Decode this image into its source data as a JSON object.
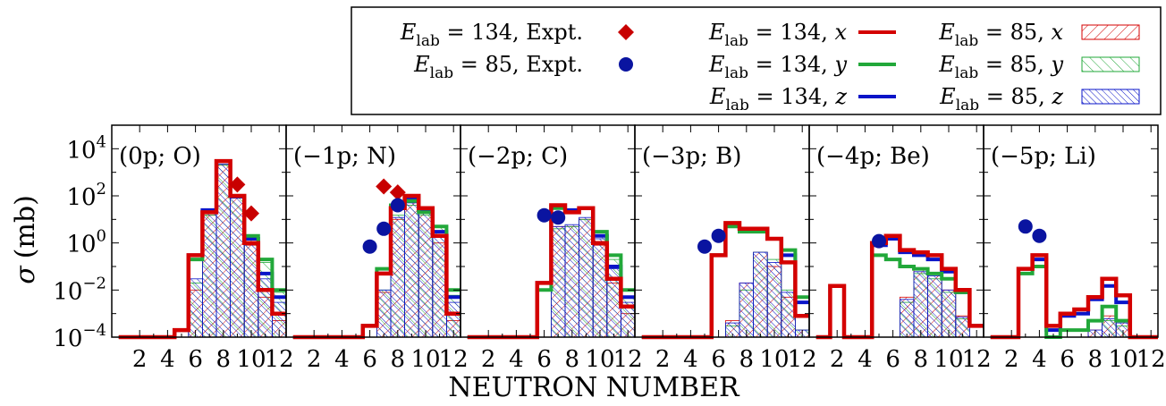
{
  "chart_data": {
    "type": "histogram-panels",
    "ylabel_symbol": "σ",
    "ylabel_unit": "(mb)",
    "xlabel": "NEUTRON NUMBER",
    "yscale": "log",
    "ylim_exp": [
      -4,
      5
    ],
    "y_ticks": [
      {
        "base": "10",
        "exp": "4",
        "value": 10000
      },
      {
        "base": "10",
        "exp": "2",
        "value": 100
      },
      {
        "base": "10",
        "exp": "0",
        "value": 1
      },
      {
        "base": "10",
        "exp": "−2",
        "value": 0.01
      },
      {
        "base": "10",
        "exp": "−4",
        "value": 0.0001
      }
    ],
    "x_ticks": [
      2,
      4,
      6,
      8,
      10,
      12
    ],
    "xlim": [
      0,
      12.5
    ],
    "colors": {
      "x": "#d40000",
      "y": "#22a83a",
      "z": "#0a14c8",
      "expt134": "#c80000",
      "expt85": "#0a14a0"
    },
    "legend": {
      "placement": "top-right",
      "entries": [
        {
          "key": "expt134",
          "var": "E",
          "sub": "lab",
          "text": "= 134, Expt."
        },
        {
          "key": "expt85",
          "var": "E",
          "sub": "lab",
          "text": "=  85, Expt."
        },
        {
          "key": "x134",
          "var": "E",
          "sub": "lab",
          "text": "= 134, ",
          "comp": "x"
        },
        {
          "key": "y134",
          "var": "E",
          "sub": "lab",
          "text": "= 134, ",
          "comp": "y"
        },
        {
          "key": "z134",
          "var": "E",
          "sub": "lab",
          "text": "= 134, ",
          "comp": "z"
        },
        {
          "key": "x85",
          "var": "E",
          "sub": "lab",
          "text": "=  85, ",
          "comp": "x"
        },
        {
          "key": "y85",
          "var": "E",
          "sub": "lab",
          "text": "=  85, ",
          "comp": "y"
        },
        {
          "key": "z85",
          "var": "E",
          "sub": "lab",
          "text": "=  85, ",
          "comp": "z"
        }
      ]
    },
    "panels": [
      {
        "label": "(0p; O)",
        "e134": {
          "x": [
            0.0001,
            0.0001,
            0.0001,
            0.0001,
            0.0002,
            0.3,
            20,
            3000,
            100,
            1,
            0.01,
            0.001
          ],
          "y": [
            0.0001,
            0.0001,
            0.0001,
            0.0001,
            0.0002,
            0.2,
            20,
            3000,
            100,
            2,
            0.2,
            0.01
          ],
          "z": [
            0.0001,
            0.0001,
            0.0001,
            0.0001,
            0.0002,
            0.3,
            25,
            3000,
            100,
            1.5,
            0.05,
            0.005
          ]
        },
        "e85": {
          "x": [
            null,
            null,
            null,
            null,
            null,
            0.01,
            15,
            2000,
            80,
            0.8,
            0.005,
            0.0005
          ],
          "y": [
            null,
            null,
            null,
            null,
            null,
            0.02,
            15,
            2000,
            80,
            1.5,
            0.15,
            0.008
          ],
          "z": [
            null,
            null,
            null,
            null,
            null,
            0.03,
            20,
            2200,
            80,
            1,
            0.03,
            0.003
          ]
        },
        "expt134": [
          [
            9,
            300
          ],
          [
            10,
            18
          ]
        ],
        "expt85": []
      },
      {
        "label": "(−1p; N)",
        "e134": {
          "x": [
            0.0001,
            0.0001,
            0.0001,
            0.0001,
            0.0001,
            0.0003,
            0.05,
            30,
            100,
            30,
            2,
            0.001
          ],
          "y": [
            0.0001,
            0.0001,
            0.0001,
            0.0001,
            0.0001,
            0.0003,
            0.08,
            40,
            60,
            20,
            5,
            0.01
          ],
          "z": [
            0.0001,
            0.0001,
            0.0001,
            0.0001,
            0.0001,
            0.0003,
            0.05,
            35,
            80,
            25,
            3,
            0.005
          ]
        },
        "e85": {
          "x": [
            null,
            null,
            null,
            null,
            null,
            null,
            0.008,
            10,
            60,
            20,
            1,
            0.0005
          ],
          "y": [
            null,
            null,
            null,
            null,
            null,
            null,
            0.01,
            15,
            40,
            15,
            5,
            0.006
          ],
          "z": [
            null,
            null,
            null,
            null,
            null,
            null,
            0.01,
            12,
            50,
            18,
            2,
            0.003
          ]
        },
        "expt134": [
          [
            7,
            250
          ],
          [
            8,
            140
          ]
        ],
        "expt85": [
          [
            6,
            0.7
          ],
          [
            7,
            4
          ],
          [
            8,
            40
          ]
        ]
      },
      {
        "label": "(−2p; C)",
        "e134": {
          "x": [
            0.0001,
            0.0001,
            0.0001,
            0.0001,
            0.0001,
            0.02,
            40,
            20,
            30,
            1,
            0.03,
            0.002
          ],
          "y": [
            0.0001,
            0.0001,
            0.0001,
            0.0001,
            0.0001,
            0.01,
            30,
            20,
            30,
            3,
            0.3,
            0.01
          ],
          "z": [
            0.0001,
            0.0001,
            0.0001,
            0.0001,
            0.0001,
            0.02,
            35,
            25,
            30,
            2,
            0.1,
            0.005
          ]
        },
        "e85": {
          "x": [
            null,
            null,
            null,
            null,
            null,
            null,
            5,
            5,
            10,
            0.8,
            0.02,
            0.001
          ],
          "y": [
            null,
            null,
            null,
            null,
            null,
            null,
            4,
            5,
            10,
            2,
            0.2,
            0.005
          ],
          "z": [
            null,
            null,
            null,
            null,
            null,
            null,
            5,
            6,
            12,
            1.5,
            0.08,
            0.003
          ]
        },
        "expt134": [],
        "expt85": [
          [
            6,
            15
          ],
          [
            7,
            12
          ]
        ]
      },
      {
        "label": "(−3p; B)",
        "e134": {
          "x": [
            0.0001,
            0.0001,
            0.0001,
            0.0001,
            0.0001,
            0.3,
            7,
            4,
            4,
            1.5,
            0.15,
            0.0008
          ],
          "y": [
            0.0001,
            0.0001,
            0.0001,
            0.0001,
            0.0001,
            0.3,
            5,
            3,
            3,
            1.5,
            0.5,
            0.005
          ],
          "z": [
            0.0001,
            0.0001,
            0.0001,
            0.0001,
            0.0001,
            0.3,
            6,
            4,
            4,
            1.5,
            0.3,
            0.003
          ]
        },
        "e85": {
          "x": [
            null,
            null,
            null,
            null,
            null,
            null,
            0.0005,
            0.02,
            0.4,
            0.1,
            0.005,
            0.0002
          ],
          "y": [
            null,
            null,
            null,
            null,
            null,
            null,
            0.0003,
            0.01,
            0.4,
            0.2,
            0.01,
            0.0002
          ],
          "z": [
            null,
            null,
            null,
            null,
            null,
            null,
            0.0004,
            0.02,
            0.4,
            0.15,
            0.008,
            0.0002
          ]
        },
        "expt134": [],
        "expt85": [
          [
            5,
            0.7
          ],
          [
            6,
            2
          ]
        ]
      },
      {
        "label": "(−4p; Be)",
        "e134": {
          "x": [
            0.0001,
            0.015,
            0.0001,
            0.0001,
            1,
            2,
            0.5,
            0.4,
            0.3,
            0.08,
            0.01,
            0.0003
          ],
          "y": [
            0.0001,
            0.015,
            0.0001,
            0.0001,
            0.3,
            0.2,
            0.1,
            0.08,
            0.05,
            0.03,
            0.008,
            0.0003
          ],
          "z": [
            0.0001,
            0.015,
            0.0001,
            0.0001,
            0.8,
            1.5,
            0.4,
            0.3,
            0.2,
            0.06,
            0.008,
            0.0003
          ]
        },
        "e85": {
          "x": [
            null,
            null,
            null,
            null,
            null,
            null,
            0.005,
            0.07,
            0.05,
            0.01,
            0.0008,
            null
          ],
          "y": [
            null,
            null,
            null,
            null,
            null,
            null,
            0.003,
            0.05,
            0.03,
            0.008,
            0.0006,
            null
          ],
          "z": [
            null,
            null,
            null,
            null,
            null,
            null,
            0.004,
            0.06,
            0.04,
            0.01,
            0.0007,
            null
          ]
        },
        "expt134": [],
        "expt85": [
          [
            5,
            1.2
          ]
        ]
      },
      {
        "label": "(−5p; Li)",
        "e134": {
          "x": [
            0.0001,
            0.0001,
            0.08,
            0.3,
            0.0003,
            0.001,
            0.0015,
            0.005,
            0.03,
            0.006,
            0.0001,
            0.0001
          ],
          "y": [
            0.0001,
            0.0001,
            0.05,
            0.1,
            3e-05,
            0.0002,
            0.0002,
            0.0005,
            0.002,
            0.0005,
            0.0001,
            0.0001
          ],
          "z": [
            0.0001,
            0.0001,
            0.08,
            0.2,
            0.0002,
            0.0008,
            0.001,
            0.004,
            0.015,
            0.003,
            0.0001,
            0.0001
          ]
        },
        "e85": {
          "x": [
            null,
            null,
            null,
            null,
            null,
            null,
            null,
            0.0002,
            0.0008,
            0.0005,
            null,
            null
          ],
          "y": [
            null,
            null,
            null,
            null,
            null,
            null,
            null,
            0.0001,
            0.0005,
            0.0003,
            null,
            null
          ],
          "z": [
            null,
            null,
            null,
            null,
            null,
            null,
            null,
            0.0002,
            0.0006,
            0.0004,
            null,
            null
          ]
        },
        "expt134": [],
        "expt85": [
          [
            3,
            5
          ],
          [
            4,
            2
          ]
        ]
      }
    ]
  }
}
